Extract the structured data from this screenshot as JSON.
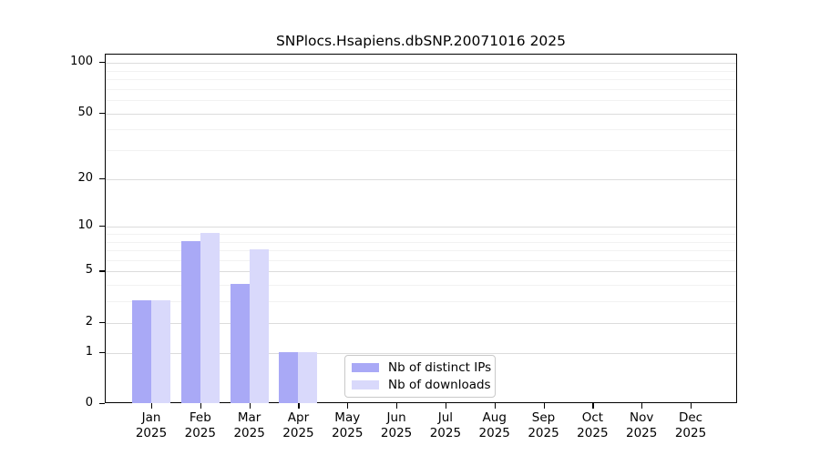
{
  "chart_data": {
    "type": "bar",
    "title": "SNPlocs.Hsapiens.dbSNP.20071016 2025",
    "categories": [
      "Jan",
      "Feb",
      "Mar",
      "Apr",
      "May",
      "Jun",
      "Jul",
      "Aug",
      "Sep",
      "Oct",
      "Nov",
      "Dec"
    ],
    "year_label": "2025",
    "series": [
      {
        "name": "Nb of distinct IPs",
        "color": "#a9a9f6",
        "values": [
          3,
          8,
          4,
          1,
          0,
          0,
          0,
          0,
          0,
          0,
          0,
          0
        ]
      },
      {
        "name": "Nb of downloads",
        "color": "#d9d9fb",
        "values": [
          3,
          9,
          7,
          1,
          0,
          0,
          0,
          0,
          0,
          0,
          0,
          0
        ]
      }
    ],
    "yticks": [
      0,
      1,
      2,
      5,
      10,
      20,
      50,
      100
    ],
    "ylim": [
      0,
      100
    ],
    "yscale": "log10(1+x)",
    "grid": true,
    "legend_position": "bottom-center-inside",
    "colors": {
      "grid_major": "#dcdcdc",
      "grid_minor": "#f2f2f2",
      "axis": "#000000",
      "background": "#ffffff"
    }
  }
}
